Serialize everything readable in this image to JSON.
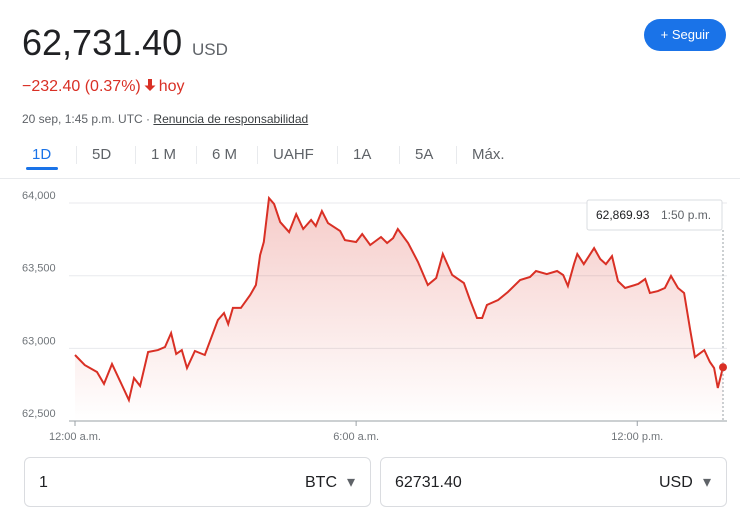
{
  "header": {
    "price": "62,731.40",
    "currency": "USD",
    "change": "−232.40 (0.37%)",
    "change_period": "hoy",
    "timestamp": "20 sep, 1:45 p.m. UTC ·",
    "disclaimer": "Renuncia de responsabilidad",
    "follow_button": "Seguir"
  },
  "tabs": [
    "1D",
    "5D",
    "1 M",
    "6 M",
    "UAHF",
    "1A",
    "5A",
    "Máx."
  ],
  "chart_data": {
    "type": "line",
    "color": "#d93025",
    "grid": true,
    "x": [
      0,
      0.21,
      0.47,
      0.62,
      0.79,
      1.0,
      1.15,
      1.26,
      1.39,
      1.56,
      1.77,
      1.92,
      2.05,
      2.16,
      2.28,
      2.39,
      2.56,
      2.77,
      3.05,
      3.18,
      3.27,
      3.37,
      3.54,
      3.74,
      3.86,
      3.95,
      4.03,
      4.14,
      4.25,
      4.38,
      4.57,
      4.72,
      4.87,
      5.04,
      5.14,
      5.27,
      5.4,
      5.66,
      5.76,
      6.0,
      6.13,
      6.3,
      6.53,
      6.66,
      6.79,
      6.89,
      7.11,
      7.32,
      7.53,
      7.71,
      7.85,
      8.05,
      8.3,
      8.43,
      8.58,
      8.69,
      8.79,
      9.03,
      9.24,
      9.5,
      9.71,
      9.84,
      10.07,
      10.29,
      10.42,
      10.52,
      10.65,
      10.72,
      10.86,
      11.08,
      11.21,
      11.33,
      11.46,
      11.59,
      11.74,
      12.02,
      12.17,
      12.27,
      12.44,
      12.59,
      12.72,
      12.87,
      13.0,
      13.13,
      13.23,
      13.43,
      13.55,
      13.64,
      13.72,
      13.83
    ],
    "values": [
      62954,
      62885,
      62837,
      62755,
      62892,
      62748,
      62644,
      62796,
      62741,
      62975,
      62988,
      63009,
      63105,
      62961,
      62988,
      62865,
      62982,
      62954,
      63195,
      63243,
      63167,
      63278,
      63278,
      63367,
      63436,
      63642,
      63732,
      64034,
      63993,
      63869,
      63800,
      63924,
      63821,
      63883,
      63842,
      63945,
      63862,
      63807,
      63745,
      63732,
      63787,
      63711,
      63766,
      63725,
      63759,
      63821,
      63725,
      63594,
      63436,
      63484,
      63649,
      63505,
      63450,
      63333,
      63209,
      63209,
      63298,
      63333,
      63388,
      63470,
      63491,
      63532,
      63511,
      63532,
      63505,
      63429,
      63580,
      63649,
      63580,
      63690,
      63615,
      63580,
      63635,
      63463,
      63415,
      63443,
      63477,
      63381,
      63394,
      63415,
      63498,
      63415,
      63381,
      63126,
      62940,
      62988,
      62906,
      62865,
      62727,
      62869.93
    ],
    "xlim": [
      0,
      13.83
    ],
    "ylim": [
      62500,
      64100
    ],
    "xticks": [
      {
        "value": 0,
        "label": "12:00 a.m."
      },
      {
        "value": 6,
        "label": "6:00 a.m."
      },
      {
        "value": 12,
        "label": "12:00 p.m."
      }
    ],
    "yticks": [
      {
        "value": 62500,
        "label": "62,500"
      },
      {
        "value": 63000,
        "label": "63,000"
      },
      {
        "value": 63500,
        "label": "63,500"
      },
      {
        "value": 64000,
        "label": "64,000"
      }
    ],
    "tooltip": {
      "value": "62,869.93",
      "time": "1:50 p.m."
    }
  },
  "converter": {
    "amount_from": "1",
    "unit_from": "BTC",
    "amount_to": "62731.40",
    "unit_to": "USD"
  }
}
